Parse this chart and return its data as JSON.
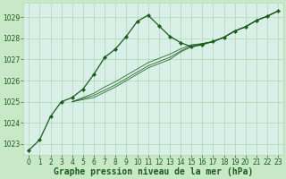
{
  "background_color": "#c8e8c8",
  "plot_bg_color": "#d8f0e8",
  "grid_color": "#b0d8b0",
  "line_color": "#1a5c1a",
  "title": "Graphe pression niveau de la mer (hPa)",
  "xlabel_color": "#1a5c1a",
  "ylim": [
    1022.5,
    1029.7
  ],
  "xlim": [
    -0.5,
    23.5
  ],
  "yticks": [
    1023,
    1024,
    1025,
    1026,
    1027,
    1028,
    1029
  ],
  "xticks": [
    0,
    1,
    2,
    3,
    4,
    5,
    6,
    7,
    8,
    9,
    10,
    11,
    12,
    13,
    14,
    15,
    16,
    17,
    18,
    19,
    20,
    21,
    22,
    23
  ],
  "main_series": [
    1022.7,
    1023.2,
    1024.3,
    1025.0,
    1025.2,
    1025.6,
    1026.3,
    1027.1,
    1027.5,
    1028.1,
    1028.8,
    1029.1,
    1028.6,
    1028.1,
    1027.8,
    1027.6,
    1027.7,
    1027.85,
    1028.05,
    1028.35,
    1028.55,
    1028.85,
    1029.05,
    1029.3
  ],
  "aux_series": [
    [
      1025.0,
      1025.2,
      1025.4,
      1025.7,
      1025.95,
      1026.25,
      1026.55,
      1026.85,
      1027.05,
      1027.25,
      1027.5,
      1027.7,
      1027.75,
      1027.85,
      1028.05,
      1028.35,
      1028.55,
      1028.85,
      1029.05,
      1029.3
    ],
    [
      1025.0,
      1025.15,
      1025.3,
      1025.55,
      1025.8,
      1026.1,
      1026.4,
      1026.7,
      1026.9,
      1027.1,
      1027.4,
      1027.65,
      1027.75,
      1027.85,
      1028.05,
      1028.35,
      1028.55,
      1028.85,
      1029.05,
      1029.3
    ],
    [
      1025.0,
      1025.1,
      1025.2,
      1025.45,
      1025.7,
      1026.0,
      1026.3,
      1026.6,
      1026.8,
      1027.0,
      1027.35,
      1027.6,
      1027.75,
      1027.85,
      1028.05,
      1028.35,
      1028.55,
      1028.85,
      1029.05,
      1029.3
    ]
  ],
  "aux_start_x": 4,
  "title_fontsize": 7,
  "tick_fontsize": 5.5
}
